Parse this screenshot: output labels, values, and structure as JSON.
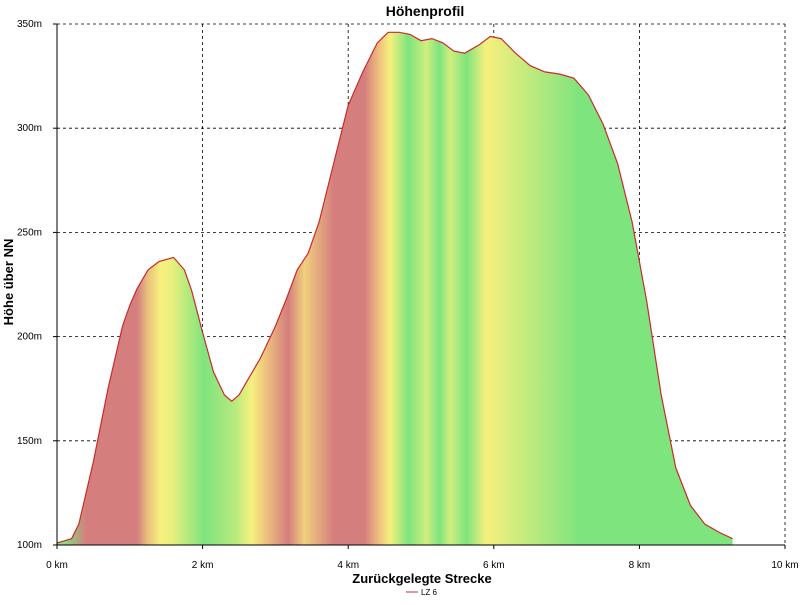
{
  "chart_data": {
    "type": "area",
    "title": "Höhenprofil",
    "xlabel": "Zurückgelegte Strecke",
    "ylabel": "Höhe über NN",
    "xlim": [
      0,
      10
    ],
    "ylim": [
      100,
      350
    ],
    "x_ticks": [
      {
        "value": 0,
        "label": "0 km"
      },
      {
        "value": 2,
        "label": "2 km"
      },
      {
        "value": 4,
        "label": "4 km"
      },
      {
        "value": 6,
        "label": "6 km"
      },
      {
        "value": 8,
        "label": "8 km"
      },
      {
        "value": 10,
        "label": "10 km"
      }
    ],
    "y_ticks": [
      {
        "value": 100,
        "label": "100m"
      },
      {
        "value": 150,
        "label": "150m"
      },
      {
        "value": 200,
        "label": "200m"
      },
      {
        "value": 250,
        "label": "250m"
      },
      {
        "value": 300,
        "label": "300m"
      },
      {
        "value": 350,
        "label": "350m"
      }
    ],
    "grid": true,
    "legend_position": "bottom-center",
    "series": [
      {
        "name": "LZ 6",
        "line_color": "#cc2a2a",
        "x": [
          0,
          0.2,
          0.3,
          0.5,
          0.7,
          0.9,
          1.0,
          1.1,
          1.25,
          1.4,
          1.6,
          1.75,
          1.85,
          2.0,
          2.15,
          2.3,
          2.4,
          2.5,
          2.6,
          2.8,
          3.0,
          3.15,
          3.3,
          3.45,
          3.6,
          3.8,
          4.0,
          4.2,
          4.4,
          4.55,
          4.7,
          4.85,
          5.0,
          5.15,
          5.3,
          5.45,
          5.6,
          5.8,
          5.95,
          6.1,
          6.3,
          6.5,
          6.7,
          6.9,
          7.1,
          7.3,
          7.5,
          7.7,
          7.9,
          8.1,
          8.3,
          8.5,
          8.7,
          8.9,
          9.1,
          9.28
        ],
        "y": [
          101,
          103,
          110,
          140,
          175,
          205,
          215,
          223,
          232,
          236,
          238,
          232,
          222,
          202,
          183,
          172,
          169,
          172,
          178,
          190,
          205,
          218,
          232,
          240,
          255,
          283,
          311,
          327,
          341,
          346,
          346,
          345,
          342,
          343,
          341,
          337,
          336,
          340,
          344,
          343,
          336,
          330,
          327,
          326,
          324,
          316,
          302,
          283,
          255,
          217,
          172,
          137,
          119,
          110,
          106,
          103
        ]
      }
    ],
    "grade_bands": [
      {
        "from": 0.05,
        "to": 0.15,
        "color": "#7ee47e"
      },
      {
        "from": 0.15,
        "to": 0.65,
        "color": "#d47e7e"
      },
      {
        "from": 0.65,
        "to": 1.05,
        "color": "#d47e7e"
      },
      {
        "from": 1.05,
        "to": 1.15,
        "color": "#d47e7e"
      },
      {
        "from": 1.15,
        "to": 1.35,
        "color": "#e8c37e"
      },
      {
        "from": 1.35,
        "to": 1.5,
        "color": "#f7f07e"
      },
      {
        "from": 1.5,
        "to": 1.65,
        "color": "#e8f07e"
      },
      {
        "from": 1.65,
        "to": 2.4,
        "color": "#7ee47e"
      },
      {
        "from": 2.4,
        "to": 2.5,
        "color": "#b8ea7e"
      },
      {
        "from": 2.5,
        "to": 2.85,
        "color": "#f7f07e"
      },
      {
        "from": 2.85,
        "to": 3.05,
        "color": "#e8b07e"
      },
      {
        "from": 3.05,
        "to": 3.3,
        "color": "#d47e7e"
      },
      {
        "from": 3.3,
        "to": 3.5,
        "color": "#f0d07e"
      },
      {
        "from": 3.5,
        "to": 4.1,
        "color": "#d47e7e"
      },
      {
        "from": 4.1,
        "to": 4.35,
        "color": "#d47e7e"
      },
      {
        "from": 4.35,
        "to": 4.5,
        "color": "#f0c07e"
      },
      {
        "from": 4.5,
        "to": 4.65,
        "color": "#f7f07e"
      },
      {
        "from": 4.65,
        "to": 5.0,
        "color": "#7ee47e"
      },
      {
        "from": 5.0,
        "to": 5.15,
        "color": "#d0ee7e"
      },
      {
        "from": 5.15,
        "to": 5.35,
        "color": "#7ee47e"
      },
      {
        "from": 5.35,
        "to": 5.45,
        "color": "#d0ee7e"
      },
      {
        "from": 5.45,
        "to": 5.8,
        "color": "#7ee47e"
      },
      {
        "from": 5.8,
        "to": 5.98,
        "color": "#f7f07e"
      },
      {
        "from": 5.98,
        "to": 8.4,
        "color": "#7ee47e"
      },
      {
        "from": 8.4,
        "to": 9.3,
        "color": "#7ee47e"
      }
    ]
  }
}
